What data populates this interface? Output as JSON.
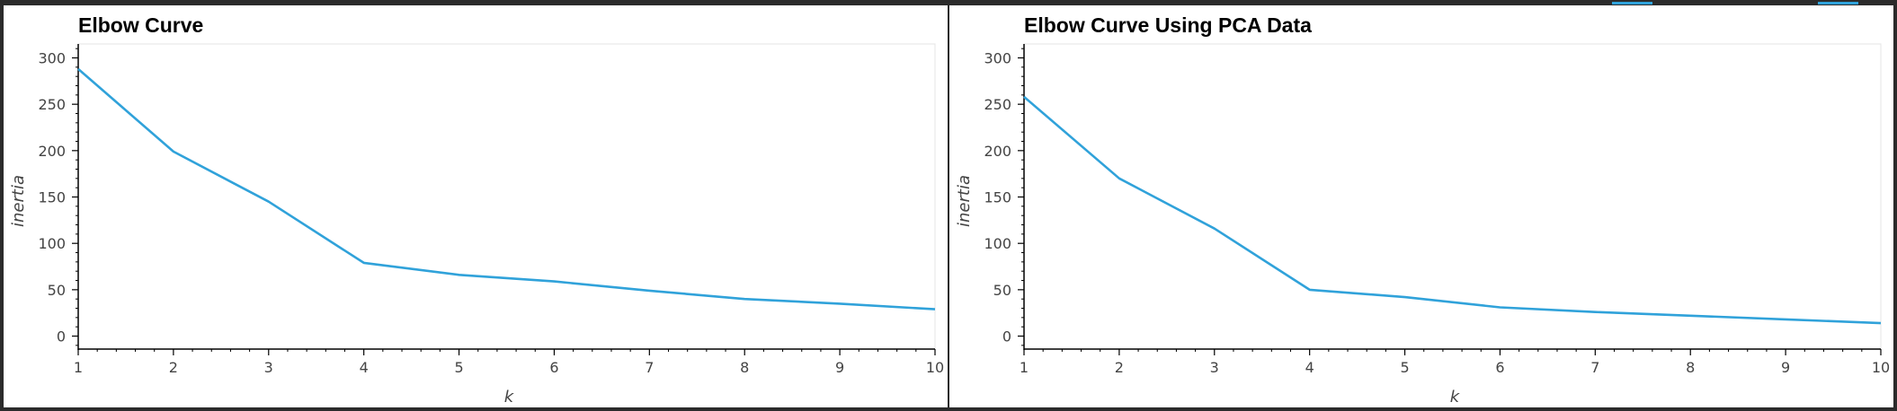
{
  "colors": {
    "line": "#30a2da",
    "axis": "#000000",
    "plot_border": "#e5e5e5"
  },
  "chart_data": [
    {
      "type": "line",
      "title": "Elbow Curve",
      "xlabel": "k",
      "ylabel": "inertia",
      "x": [
        1,
        2,
        3,
        4,
        5,
        6,
        7,
        8,
        9,
        10
      ],
      "series": [
        {
          "values": [
            288,
            199,
            145,
            79,
            66,
            59,
            49,
            40,
            35,
            29
          ]
        }
      ],
      "xlim": [
        1,
        10
      ],
      "ylim": [
        -14,
        315
      ],
      "yticks": [
        0,
        50,
        100,
        150,
        200,
        250,
        300
      ],
      "xticks": [
        1,
        2,
        3,
        4,
        5,
        6,
        7,
        8,
        9,
        10
      ],
      "grid": false
    },
    {
      "type": "line",
      "title": "Elbow Curve Using PCA Data",
      "xlabel": "k",
      "ylabel": "inertia",
      "x": [
        1,
        2,
        3,
        4,
        5,
        6,
        7,
        8,
        9,
        10
      ],
      "series": [
        {
          "values": [
            258,
            170,
            116,
            50,
            42,
            31,
            26,
            22,
            18,
            14
          ]
        }
      ],
      "xlim": [
        1,
        10
      ],
      "ylim": [
        -14,
        315
      ],
      "yticks": [
        0,
        50,
        100,
        150,
        200,
        250,
        300
      ],
      "xticks": [
        1,
        2,
        3,
        4,
        5,
        6,
        7,
        8,
        9,
        10
      ],
      "grid": false
    }
  ]
}
